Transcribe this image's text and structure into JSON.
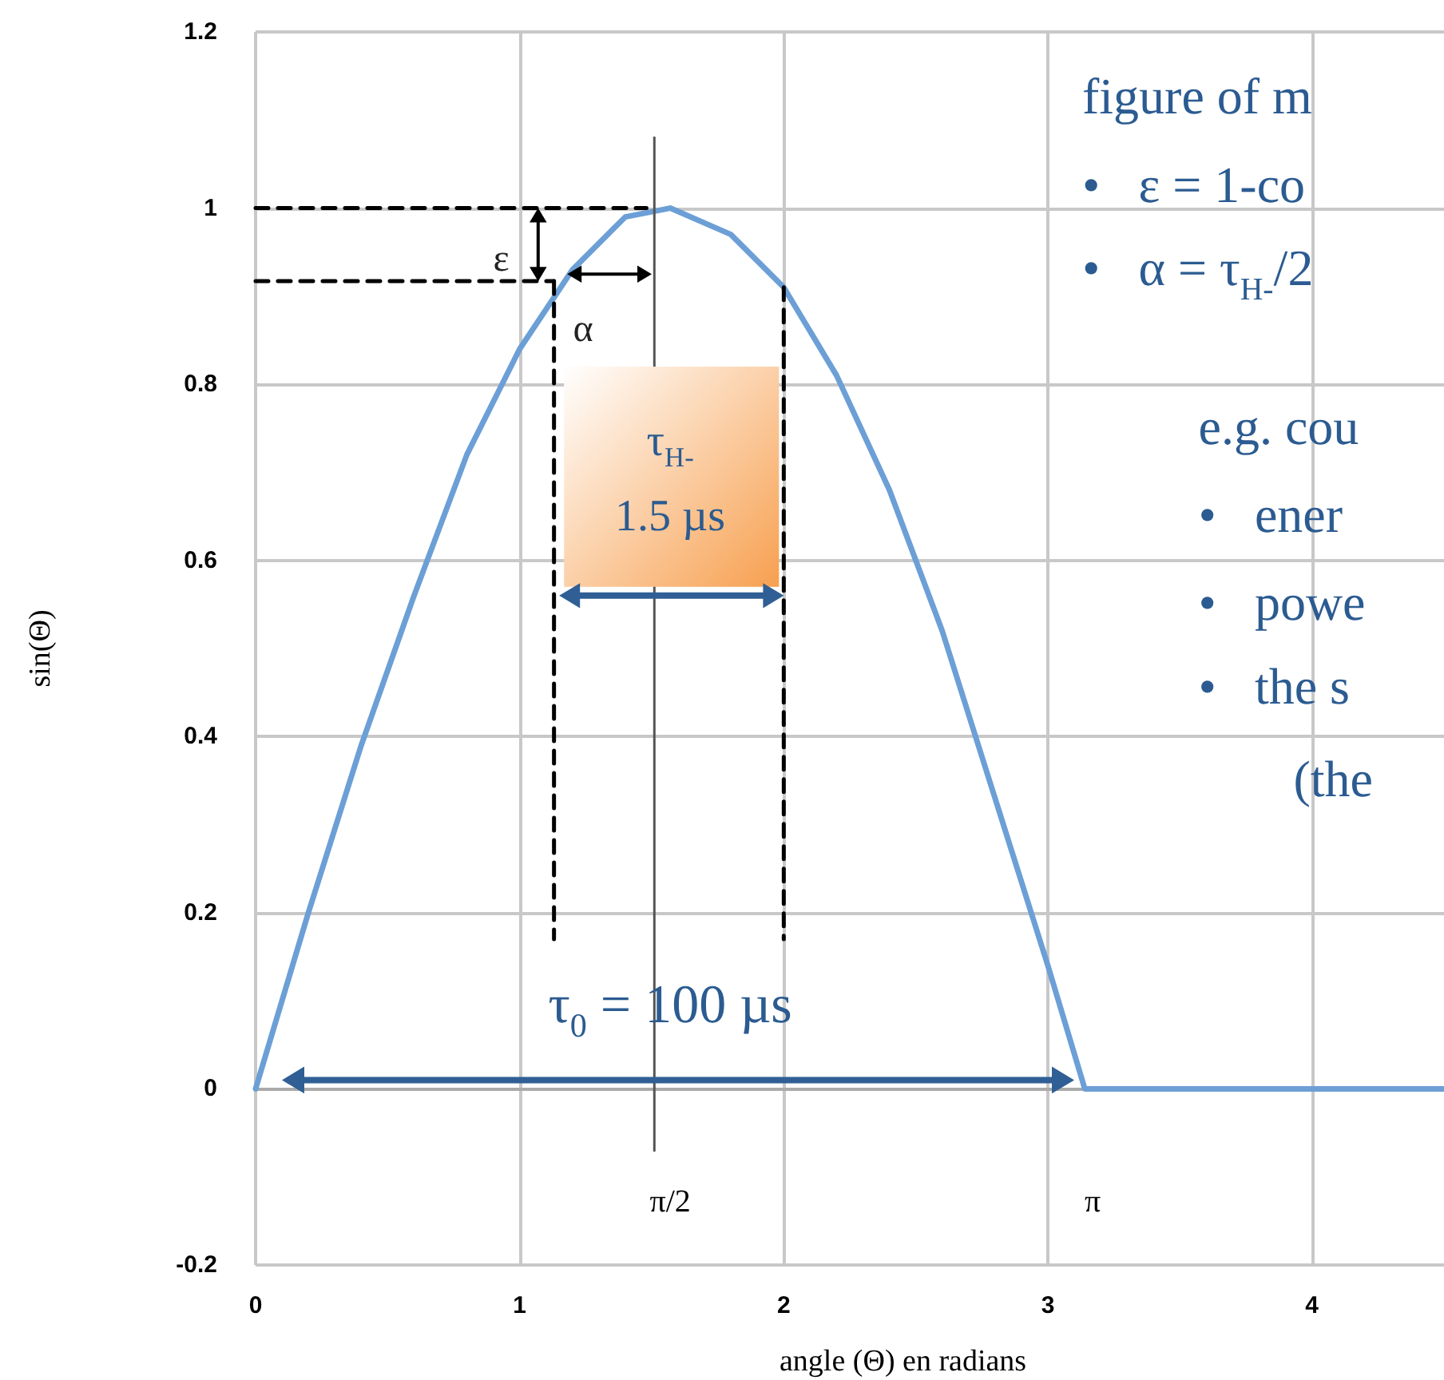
{
  "chart_data": {
    "type": "line",
    "xlabel": "angle (Θ) en radians",
    "ylabel": "sin(Θ)",
    "xlim": [
      0,
      4.5
    ],
    "xticks": [
      0,
      1,
      2,
      3,
      4
    ],
    "ylim": [
      -0.2,
      1.2
    ],
    "yticks": [
      -0.2,
      0,
      0.2,
      0.4,
      0.6,
      0.8,
      1,
      1.2
    ],
    "grid": true,
    "marker": "none",
    "series": [
      {
        "color": "#6c9fd6",
        "x": [
          0,
          0.2,
          0.4,
          0.6,
          0.8,
          1.0,
          1.2,
          1.4,
          1.57,
          1.8,
          2.0,
          2.2,
          2.4,
          2.6,
          2.8,
          3.0,
          3.14,
          4.5
        ],
        "values": [
          0,
          0.2,
          0.39,
          0.56,
          0.72,
          0.84,
          0.93,
          0.99,
          1,
          0.97,
          0.91,
          0.81,
          0.68,
          0.52,
          0.33,
          0.14,
          0,
          0
        ]
      },
      {
        "color": "#555555",
        "x": [
          1.51,
          1.51
        ],
        "values": [
          1.08,
          -0.07
        ],
        "line_style": "solid"
      },
      {
        "color": "#000000",
        "x": [
          0,
          1.48
        ],
        "values": [
          1,
          1
        ],
        "line_style": "dashed"
      },
      {
        "color": "#000000",
        "x": [
          0,
          1.13
        ],
        "values": [
          0.917,
          0.917
        ],
        "line_style": "dashed"
      },
      {
        "color": "#000000",
        "x": [
          1.13,
          1.13
        ],
        "values": [
          0.917,
          0.17
        ],
        "line_style": "dashed"
      },
      {
        "color": "#000000",
        "x": [
          2.0,
          2.0
        ],
        "values": [
          0.91,
          0.17
        ],
        "line_style": "dashed"
      }
    ],
    "annotations": [
      "ε",
      "α",
      "τ$_{H-}$",
      "1.5 µs",
      "τ$_{0}$ = 100 µs",
      "π/2",
      "π",
      "figure of m",
      "•   ε = 1-co",
      "•   α = τ$_{H-}$/2",
      "e.g. cou",
      "•   ener",
      "•   powe",
      "•   the s",
      "(the "
    ]
  }
}
